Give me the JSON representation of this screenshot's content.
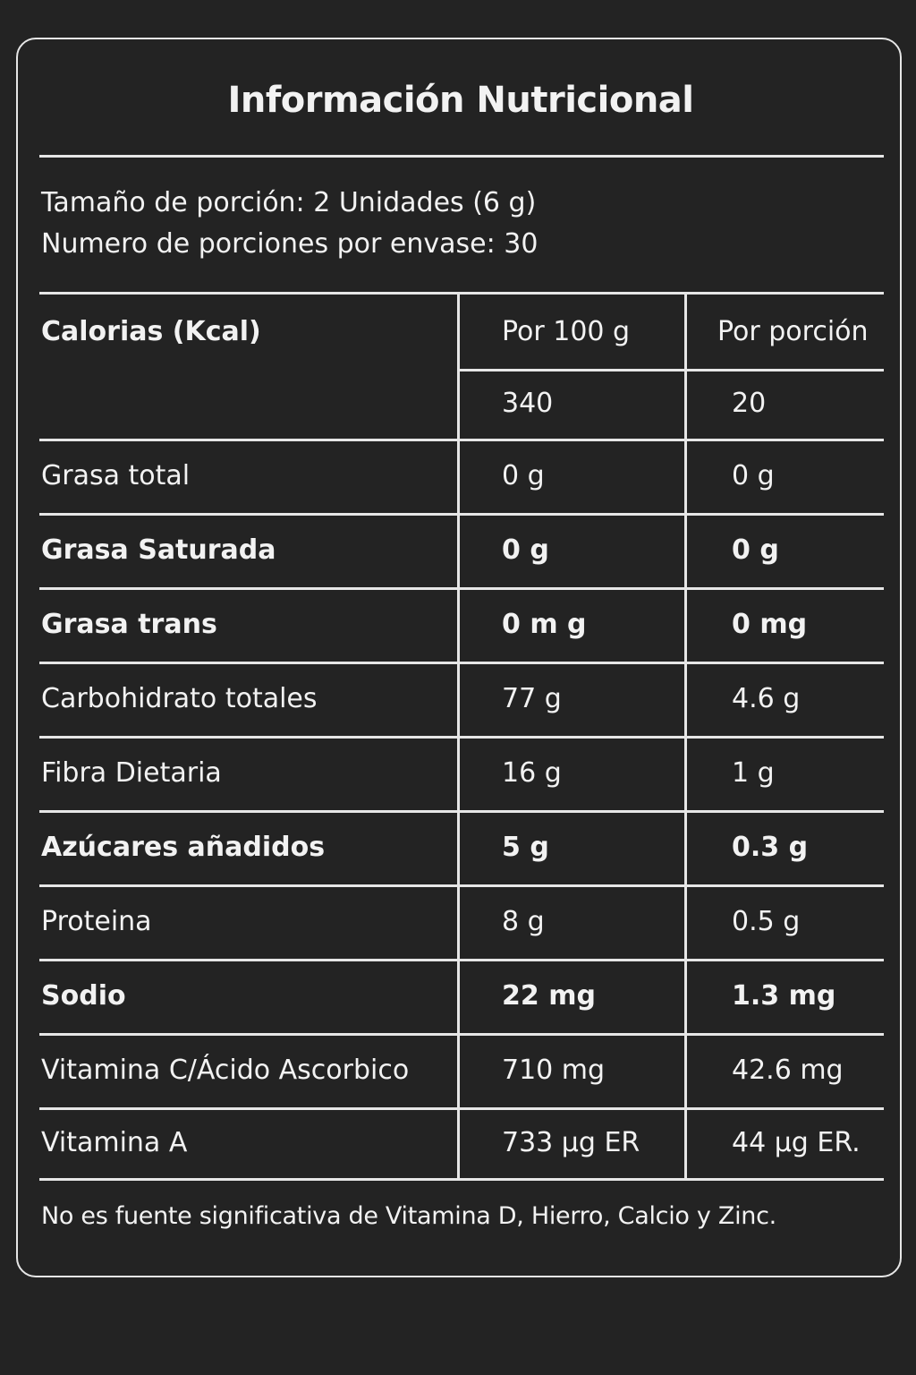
{
  "label": {
    "title": "Información Nutricional",
    "serving_size": "Tamaño de porción: 2 Unidades (6 g)",
    "servings_per_container": "Numero de porciones por envase: 30",
    "header": {
      "calories_label": "Calorias (Kcal)",
      "col_per_100g": "Por 100 g",
      "col_per_serving": "Por porción",
      "calories_per_100g": "340",
      "calories_per_serving": "20"
    },
    "rows": [
      {
        "name": "Grasa total",
        "per_100g": "0 g",
        "per_serving": "0 g",
        "bold": false
      },
      {
        "name": "Grasa Saturada",
        "per_100g": "0 g",
        "per_serving": "0 g",
        "bold": true
      },
      {
        "name": "Grasa trans",
        "per_100g": "0 m g",
        "per_serving": "0 mg",
        "bold": true
      },
      {
        "name": "Carbohidrato totales",
        "per_100g": "77 g",
        "per_serving": "4.6 g",
        "bold": false
      },
      {
        "name": "Fibra Dietaria",
        "per_100g": "16 g",
        "per_serving": "1 g",
        "bold": false
      },
      {
        "name": "Azúcares añadidos",
        "per_100g": "5 g",
        "per_serving": "0.3 g",
        "bold": true
      },
      {
        "name": "Proteina",
        "per_100g": "8 g",
        "per_serving": "0.5 g",
        "bold": false
      },
      {
        "name": "Sodio",
        "per_100g": "22 mg",
        "per_serving": "1.3 mg",
        "bold": true
      },
      {
        "name": "Vitamina C/Ácido Ascorbico",
        "per_100g": "710 mg",
        "per_serving": "42.6 mg",
        "bold": false
      },
      {
        "name": "Vitamina A",
        "per_100g": "733 μg  ER",
        "per_serving": "44 μg ER.",
        "bold": false
      }
    ],
    "footnote": "No es fuente significativa de Vitamina D, Hierro, Calcio y Zinc."
  }
}
